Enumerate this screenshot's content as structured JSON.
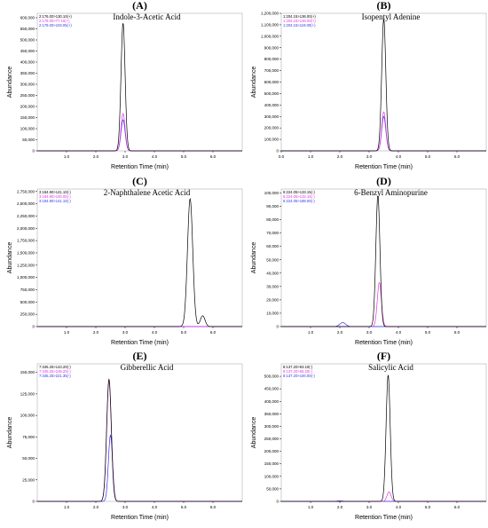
{
  "figure": {
    "background": "#ffffff"
  },
  "colors": {
    "black": "#000000",
    "magenta": "#e633e6",
    "blue": "#3333e6"
  },
  "chart_data": [
    {
      "type": "line",
      "label": "(A)",
      "title": "Indole-3-Acetic Acid",
      "xlabel": "Retention Time (min)",
      "ylabel": "Abundance",
      "xlim": [
        0,
        7
      ],
      "ylim": [
        0,
        620000
      ],
      "xticks": [
        1.0,
        2.0,
        3.0,
        4.0,
        5.0,
        6.0
      ],
      "xtick_labels": [
        "1.0",
        "2.0",
        "3.0",
        "4.0",
        "5.0",
        "6.0"
      ],
      "yticks": [
        0,
        50000,
        100000,
        150000,
        200000,
        250000,
        300000,
        350000,
        400000,
        450000,
        500000,
        550000,
        600000
      ],
      "ytick_labels": [
        "0",
        "50,000",
        "100,000",
        "150,000",
        "200,000",
        "250,000",
        "300,000",
        "350,000",
        "400,000",
        "450,000",
        "500,000",
        "550,000",
        "600,000"
      ],
      "legend": [
        "2:176.00>130.10(+)",
        "2:176.00>77.10(+)",
        "2:176.00>103.05(+)"
      ],
      "series": [
        {
          "color": "#000000",
          "peaks": [
            [
              2.93,
              575000,
              0.07
            ]
          ]
        },
        {
          "color": "#e633e6",
          "peaks": [
            [
              2.93,
              168000,
              0.07
            ]
          ]
        },
        {
          "color": "#3333e6",
          "peaks": [
            [
              2.93,
              140000,
              0.07
            ]
          ]
        }
      ]
    },
    {
      "type": "line",
      "label": "(B)",
      "title": "Isopentyl Adenine",
      "xlabel": "Retention Time (min)",
      "ylabel": "Abundance",
      "xlim": [
        0,
        7
      ],
      "ylim": [
        0,
        1200000
      ],
      "xticks": [
        0.0,
        1.0,
        2.0,
        3.0,
        4.0,
        5.0,
        6.0
      ],
      "xtick_labels": [
        "0.0",
        "1.0",
        "2.0",
        "3.0",
        "4.0",
        "5.0",
        "6.0"
      ],
      "yticks": [
        0,
        100000,
        200000,
        300000,
        400000,
        500000,
        600000,
        700000,
        800000,
        900000,
        1000000,
        1100000,
        1200000
      ],
      "ytick_labels": [
        "0",
        "100,000",
        "200,000",
        "300,000",
        "400,000",
        "500,000",
        "600,000",
        "700,000",
        "800,000",
        "900,000",
        "1,000,000",
        "1,100,000",
        "1,200,000"
      ],
      "legend": [
        "1:204.15>136.00(+)",
        "1:204.15>148.00(+)",
        "1:204.15>119.00(+)"
      ],
      "series": [
        {
          "color": "#000000",
          "peaks": [
            [
              3.5,
              1150000,
              0.07
            ]
          ]
        },
        {
          "color": "#e633e6",
          "peaks": [
            [
              3.5,
              340000,
              0.07
            ]
          ]
        },
        {
          "color": "#3333e6",
          "peaks": [
            [
              3.5,
              300000,
              0.07
            ]
          ]
        }
      ]
    },
    {
      "type": "line",
      "label": "(C)",
      "title": "2-Naphthalene Acetic Acid",
      "xlabel": "Retention Time (min)",
      "ylabel": "Abundance",
      "xlim": [
        0,
        7
      ],
      "ylim": [
        0,
        2800000
      ],
      "xticks": [
        1.0,
        2.0,
        3.0,
        4.0,
        5.0,
        6.0
      ],
      "xtick_labels": [
        "1.0",
        "2.0",
        "3.0",
        "4.0",
        "5.0",
        "6.0"
      ],
      "yticks": [
        0,
        250000,
        500000,
        750000,
        1000000,
        1250000,
        1500000,
        1750000,
        2000000,
        2250000,
        2500000,
        2750000
      ],
      "ytick_labels": [
        "0",
        "250,000",
        "500,000",
        "750,000",
        "1,000,000",
        "1,250,000",
        "1,500,000",
        "1,750,000",
        "2,000,000",
        "2,250,000",
        "2,500,000",
        "2,750,000"
      ],
      "legend": [
        "3:184.90>141.10(-)",
        "3:184.90>100.00(-)",
        "3:184.90>141.10(-)"
      ],
      "series": [
        {
          "color": "#000000",
          "peaks": [
            [
              5.22,
              2600000,
              0.09
            ],
            [
              5.65,
              220000,
              0.08
            ]
          ]
        },
        {
          "color": "#e633e6",
          "peaks": []
        },
        {
          "color": "#3333e6",
          "peaks": []
        }
      ]
    },
    {
      "type": "line",
      "label": "(D)",
      "title": "6-Benzyl Aminopurine",
      "xlabel": "Retention Time (min)",
      "ylabel": "Abundance",
      "xlim": [
        0,
        7
      ],
      "ylim": [
        0,
        103000
      ],
      "xticks": [
        1.0,
        2.0,
        3.0,
        4.0,
        5.0,
        6.0
      ],
      "xtick_labels": [
        "1.0",
        "2.0",
        "3.0",
        "4.0",
        "5.0",
        "6.0"
      ],
      "yticks": [
        0,
        10000,
        20000,
        30000,
        40000,
        50000,
        60000,
        70000,
        80000,
        90000,
        100000
      ],
      "ytick_labels": [
        "0",
        "10,000",
        "20,000",
        "30,000",
        "40,000",
        "50,000",
        "60,000",
        "70,000",
        "80,000",
        "90,000",
        "100,000"
      ],
      "legend": [
        "6:224.05>133.15(-)",
        "6:224.05>132.15(-)",
        "6:224.05>188.00(-)"
      ],
      "series": [
        {
          "color": "#000000",
          "peaks": [
            [
              3.3,
              98000,
              0.07
            ]
          ]
        },
        {
          "color": "#e633e6",
          "peaks": [
            [
              3.35,
              33000,
              0.07
            ]
          ]
        },
        {
          "color": "#3333e6",
          "peaks": [
            [
              2.1,
              3000,
              0.1
            ]
          ]
        }
      ]
    },
    {
      "type": "line",
      "label": "(E)",
      "title": "Gibberellic Acid",
      "xlabel": "Retention Time (min)",
      "ylabel": "Abundance",
      "xlim": [
        0,
        7
      ],
      "ylim": [
        0,
        160000
      ],
      "xticks": [
        1.0,
        2.0,
        3.0,
        4.0,
        5.0,
        6.0
      ],
      "xtick_labels": [
        "1.0",
        "2.0",
        "3.0",
        "4.0",
        "5.0",
        "6.0"
      ],
      "yticks": [
        0,
        25000,
        50000,
        75000,
        100000,
        125000,
        150000
      ],
      "ytick_labels": [
        "0",
        "25,000",
        "50,000",
        "75,000",
        "100,000",
        "125,000",
        "150,000"
      ],
      "legend": [
        "7:345.25>143.20(-)",
        "7:345.25>239.20(-)",
        "7:345.25>221.35(-)"
      ],
      "series": [
        {
          "color": "#000000",
          "peaks": [
            [
              2.45,
              142000,
              0.08
            ]
          ]
        },
        {
          "color": "#e633e6",
          "peaks": [
            [
              2.45,
              140000,
              0.08
            ]
          ]
        },
        {
          "color": "#3333e6",
          "peaks": [
            [
              2.5,
              77000,
              0.07
            ]
          ]
        }
      ]
    },
    {
      "type": "line",
      "label": "(F)",
      "title": "Salicylic Acid",
      "xlabel": "Retention Time (min)",
      "ylabel": "Abundance",
      "xlim": [
        0,
        7
      ],
      "ylim": [
        0,
        550000
      ],
      "xticks": [
        1.0,
        2.0,
        3.0,
        4.0,
        5.0,
        6.0
      ],
      "xtick_labels": [
        "1.0",
        "2.0",
        "3.0",
        "4.0",
        "5.0",
        "6.0"
      ],
      "yticks": [
        0,
        50000,
        100000,
        150000,
        200000,
        250000,
        300000,
        350000,
        400000,
        450000,
        500000
      ],
      "ytick_labels": [
        "0",
        "50,000",
        "100,000",
        "150,000",
        "200,000",
        "250,000",
        "300,000",
        "350,000",
        "400,000",
        "450,000",
        "500,000"
      ],
      "legend": [
        "8:137.20>93.10(-)",
        "8:137.20>65.20(-)",
        "8:137.20>100.00(-)"
      ],
      "series": [
        {
          "color": "#000000",
          "peaks": [
            [
              3.65,
              505000,
              0.07
            ]
          ]
        },
        {
          "color": "#e633e6",
          "peaks": [
            [
              3.68,
              38000,
              0.07
            ]
          ]
        },
        {
          "color": "#3333e6",
          "peaks": [
            [
              2.0,
              2000,
              0.1
            ]
          ]
        }
      ]
    }
  ]
}
